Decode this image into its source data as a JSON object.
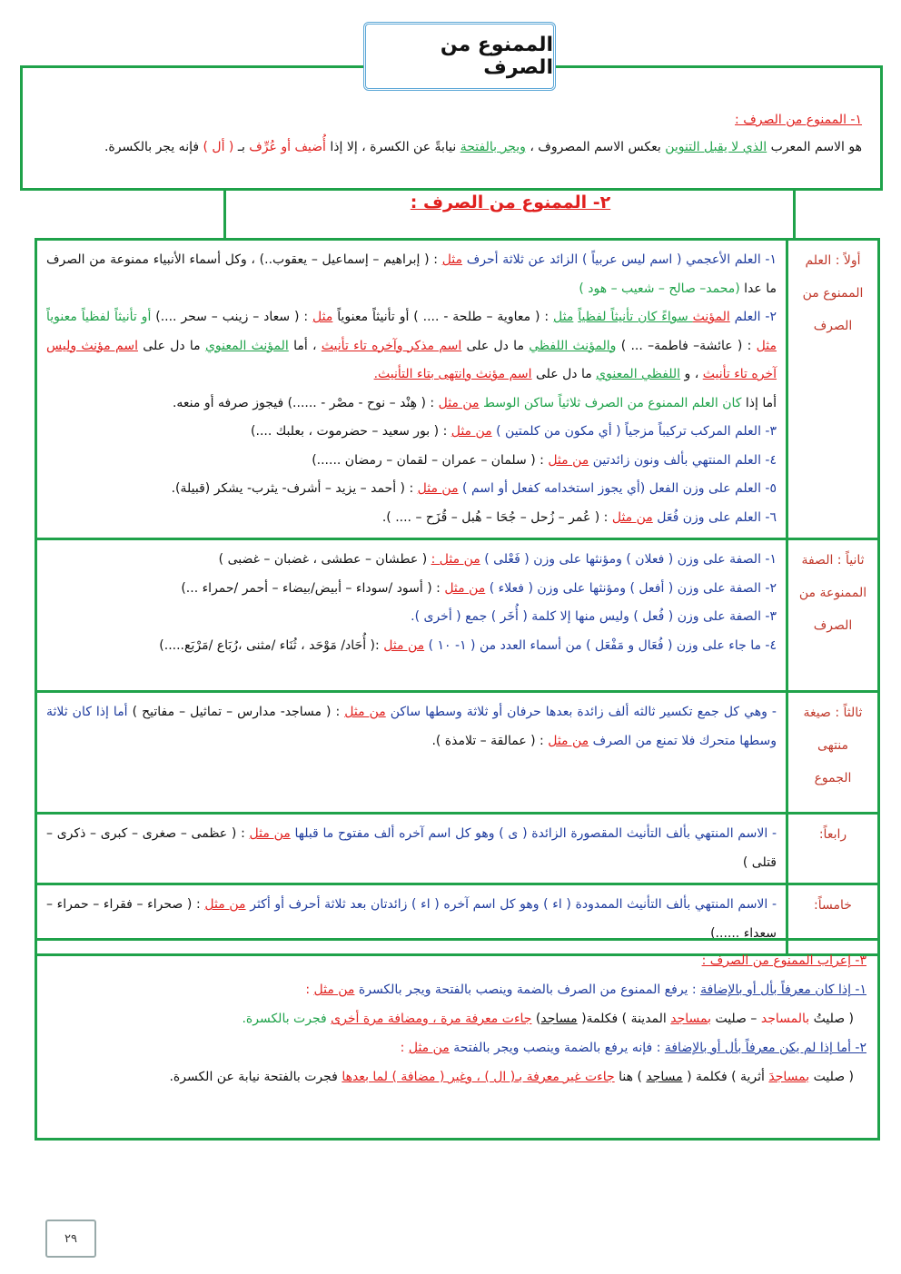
{
  "header": {
    "title": "الممنوع من الصرف"
  },
  "intro": {
    "heading": "١- الممنوع من الصرف :",
    "paragraph": [
      "هو الاسم المعرب ",
      {
        "text": "الذي لا يقبل التنوين",
        "color": "#1fa24a",
        "underline": true
      },
      " بعكس الاسم المصروف ، ",
      {
        "text": "ويجر بالفتحة",
        "color": "#1fa24a",
        "underline": true
      },
      " نيابةً عن الكسرة ، إلا إذا ",
      {
        "text": "أُضيف أو عُرِّف",
        "color": "#e0201e"
      },
      " بـ ",
      {
        "text": "( أل )",
        "color": "#e0201e"
      },
      " فإنه يجر بالكسرة."
    ]
  },
  "section2": {
    "heading": "٢- الممنوع من الصرف :",
    "rows": [
      {
        "label": "أولاً : العلم الممنوع من الصرف",
        "paragraphs": [
          [
            {
              "text": "١- العلم الأعجمي ( اسم ليس عربياً ) الزائد عن ثلاثة أحرف",
              "color": "#1f3c9e"
            },
            " ",
            {
              "text": "مثل",
              "color": "#e0201e",
              "underline": true
            },
            " : ( إبراهيم – إسماعيل – يعقوب..) ، وكل أسماء الأنبياء ممنوعة من الصرف ما عدا ",
            {
              "text": "(محمد– صالح – شعيب – هود )",
              "color": "#1fa24a"
            }
          ],
          [
            {
              "text": "٢- العلم ",
              "color": "#1f3c9e"
            },
            {
              "text": "المؤنث",
              "color": "#e0201e",
              "underline": true
            },
            {
              "text": " سواءً كان تأنيثاً لفظياً",
              "color": "#1fa24a",
              "underline": true
            },
            " ",
            {
              "text": "مثل",
              "color": "#1fa24a",
              "underline": true
            },
            " : ( معاوية – طلحة - .... ) أو تأنيثاً معنوياً ",
            {
              "text": "مثل",
              "color": "#e0201e",
              "underline": true
            },
            " : ( سعاد – زينب – سحر ....) ",
            {
              "text": "أو تأنيثاً لفظياً معنوياً",
              "color": "#1fa24a"
            },
            " ",
            {
              "text": "مثل",
              "color": "#e0201e",
              "underline": true
            },
            " : ( عائشة– فاطمة– ... ) ",
            {
              "text": "والمؤنث اللفظي",
              "color": "#1fa24a",
              "underline": true
            },
            " ما دل على ",
            {
              "text": "اسم مذكر وآخره تاء تأنيث",
              "color": "#e0201e",
              "underline": true
            },
            " ، أما ",
            {
              "text": "المؤنث المعنوي",
              "color": "#1fa24a",
              "underline": true
            },
            " ما دل على ",
            {
              "text": "اسم مؤنث وليس آخره تاء تأنيث",
              "color": "#e0201e",
              "underline": true
            },
            " ، و ",
            {
              "text": "اللفظي المعنوي",
              "color": "#1fa24a",
              "underline": true
            },
            " ما دل على ",
            {
              "text": "اسم مؤنث وانتهى بتاء التأنيث.",
              "color": "#e0201e",
              "underline": true
            }
          ],
          [
            "أما إذا ",
            {
              "text": "كان العلم الممنوع من الصرف ثلاثياً ساكن الوسط",
              "color": "#1fa24a"
            },
            " ",
            {
              "text": "من مثل",
              "color": "#e0201e",
              "underline": true
            },
            " : ( هِنْد – نوح - مصْر - ......) فيجوز صرفه أو منعه."
          ],
          [
            {
              "text": "٣- العلم المركب تركيباً مزجياً ( أي مكون من كلمتين )",
              "color": "#1f3c9e"
            },
            " ",
            {
              "text": "من مثل",
              "color": "#e0201e",
              "underline": true
            },
            " : ( بور سعيد – حضرموت ، بعلبك ....)"
          ],
          [
            {
              "text": "٤- العلم المنتهي بألف ونون زائدتين",
              "color": "#1f3c9e"
            },
            " ",
            {
              "text": "من مثل",
              "color": "#e0201e",
              "underline": true
            },
            " : ( سلمان – عمران – لقمان – رمضان ......)"
          ],
          [
            {
              "text": "٥- العلم على وزن الفعل (أي يجوز استخدامه كفعل أو اسم )",
              "color": "#1f3c9e"
            },
            " ",
            {
              "text": "من مثل",
              "color": "#e0201e",
              "underline": true
            },
            " : ( أحمد – يزيد – أشرف- يثرب- يشكر (قبيلة)."
          ],
          [
            {
              "text": "٦- العلم على وزن فُعَل",
              "color": "#1f3c9e"
            },
            " ",
            {
              "text": "من مثل",
              "color": "#e0201e",
              "underline": true
            },
            " : ( عُمر – زُحل – جُحَا – هُبل – قُزَح – .... )."
          ]
        ]
      },
      {
        "label": "ثانياً : الصفة الممنوعة من الصرف",
        "paragraphs": [
          [
            {
              "text": "١- الصفة على وزن ( فعلان ) ومؤنثها على وزن ( فَعْلى )",
              "color": "#1f3c9e"
            },
            " ",
            {
              "text": "من مثل :",
              "color": "#e0201e",
              "underline": true
            },
            " ( عطشان – عطشى ، غضبان – غضبى )"
          ],
          [
            {
              "text": "٢- الصفة على وزن ( أفعل ) ومؤنثها على وزن ( فعلاء )",
              "color": "#1f3c9e"
            },
            " ",
            {
              "text": "من مثل",
              "color": "#e0201e",
              "underline": true
            },
            " : ( أسود /سوداء – أبيض/بيضاء – أحمر /حمراء ...)"
          ],
          [
            {
              "text": "٣- الصفة على وزن ( فُعل ) وليس منها إلا كلمة ( أُخَر ) جمع ( أخرى ).",
              "color": "#1f3c9e"
            }
          ],
          [
            {
              "text": "٤- ما جاء على وزن ( فُعَال و مَفْعَل ) من أسماء العدد من ( ١- ١٠ )",
              "color": "#1f3c9e"
            },
            " ",
            {
              "text": "من مثل",
              "color": "#e0201e",
              "underline": true
            },
            " :( أُحَاد/ مَوْحَد ، ثُنَاء /مثنى ،رُبَاع /مَرْبَع.....)"
          ]
        ]
      },
      {
        "label": "ثالثاً : صيغة منتهى الجموع",
        "paragraphs": [
          [
            {
              "text": "- وهي كل جمع تكسير ثالثه ألف زائدة بعدها حرفان أو ثلاثة وسطها ساكن",
              "color": "#1f3c9e"
            },
            " ",
            {
              "text": "من مثل",
              "color": "#e0201e",
              "underline": true
            },
            " : ( مساجد- مدارس – تماثيل – مفاتيح ) ",
            {
              "text": "أما إذا كان ثلاثة وسطها متحرك فلا تمنع من الصرف",
              "color": "#1f3c9e"
            },
            " ",
            {
              "text": "من مثل",
              "color": "#e0201e",
              "underline": true
            },
            " : ( عمالقة – تلامذة )."
          ]
        ]
      },
      {
        "label": "رابعاً:",
        "paragraphs": [
          [
            {
              "text": "- الاسم المنتهي بألف التأنيث المقصورة الزائدة ( ى ) وهو كل اسم آخره ألف مفتوح ما قبلها",
              "color": "#1f3c9e"
            },
            " ",
            {
              "text": "من مثل",
              "color": "#e0201e",
              "underline": true
            },
            " : ( عظمى – صغرى – كبرى – ذكرى – قتلى )"
          ]
        ]
      },
      {
        "label": "خامساً:",
        "paragraphs": [
          [
            {
              "text": "- الاسم المنتهي بألف التأنيث الممدودة ( اء ) وهو كل اسم آخره ( اء ) زائدتان بعد ثلاثة أحرف أو أكثر",
              "color": "#1f3c9e"
            },
            " ",
            {
              "text": "من مثل",
              "color": "#e0201e",
              "underline": true
            },
            " : ( صحراء – فقراء – حمراء – سعداء ......)"
          ]
        ]
      }
    ]
  },
  "section3": {
    "heading": "٣- إعراب الممنوع من الصرف :",
    "paragraphs": [
      [
        {
          "text": "١- إذا كان معرفاً بأل أو بالإضافة",
          "color": "#1f3c9e",
          "underline": true
        },
        {
          "text": " : يرفع الممنوع من الصرف بالضمة وينصب بالفتحة ويجر بالكسرة ",
          "color": "#1f3c9e"
        },
        {
          "text": "من مثل",
          "color": "#e0201e",
          "underline": true
        },
        {
          "text": " :",
          "color": "#e0201e"
        }
      ],
      [
        "( صليتُ ",
        {
          "text": "بالمساجد",
          "color": "#e0201e"
        },
        " – صليت ",
        {
          "text": "بمساجد",
          "color": "#e0201e",
          "underline": true
        },
        " المدينة ) فكلمة( ",
        {
          "text": "مساجد",
          "underline": true
        },
        ") ",
        {
          "text": "جاءت معرفة مرة ، ومضافة مرة أخرى",
          "color": "#e0201e",
          "underline": true
        },
        {
          "text": " فجرت بالكسرة.",
          "color": "#1fa24a"
        }
      ],
      [
        {
          "text": "٢- أما إذا لم يكن معرفاً بأل أو بالإضافة",
          "color": "#1f3c9e",
          "underline": true
        },
        {
          "text": " : فإنه يرفع بالضمة وينصب ويجر بالفتحة ",
          "color": "#1f3c9e"
        },
        {
          "text": "من مثل",
          "color": "#e0201e",
          "underline": true
        },
        {
          "text": " :",
          "color": "#e0201e"
        }
      ],
      [
        "( صليت ",
        {
          "text": "بمساجدَ",
          "color": "#e0201e",
          "underline": true
        },
        " أثرية ) فكلمة ( ",
        {
          "text": "مساجد",
          "underline": true
        },
        " ) هنا ",
        {
          "text": "جاءت غير معرفة بـ( ال ) ، وغير ( مضافة ) لما بعدها",
          "color": "#e0201e",
          "underline": true
        },
        " فجرت بالفتحة نيابة عن الكسرة."
      ]
    ]
  },
  "footer": {
    "page_number": "٢٩"
  }
}
